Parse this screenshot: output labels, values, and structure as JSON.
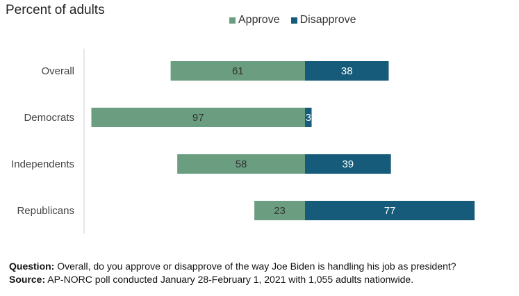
{
  "chart_data": {
    "type": "bar",
    "orientation": "horizontal",
    "stacked": "diverging",
    "subtitle": "Percent of adults",
    "categories": [
      "Overall",
      "Democrats",
      "Independents",
      "Republicans"
    ],
    "series": [
      {
        "name": "Approve",
        "values": [
          61,
          97,
          58,
          23
        ],
        "color": "#6b9e80",
        "label_color": "#333333"
      },
      {
        "name": "Disapprove",
        "values": [
          38,
          3,
          39,
          77
        ],
        "color": "#165b7a",
        "label_color": "#ffffff"
      }
    ],
    "legend_position": "top"
  },
  "notes": {
    "question_label": "Question:",
    "question_text": " Overall, do you approve or disapprove of the way Joe Biden is handling his job as president?",
    "source_label": "Source:",
    "source_text": " AP-NORC poll conducted January 28-February 1, 2021 with 1,055 adults nationwide."
  }
}
